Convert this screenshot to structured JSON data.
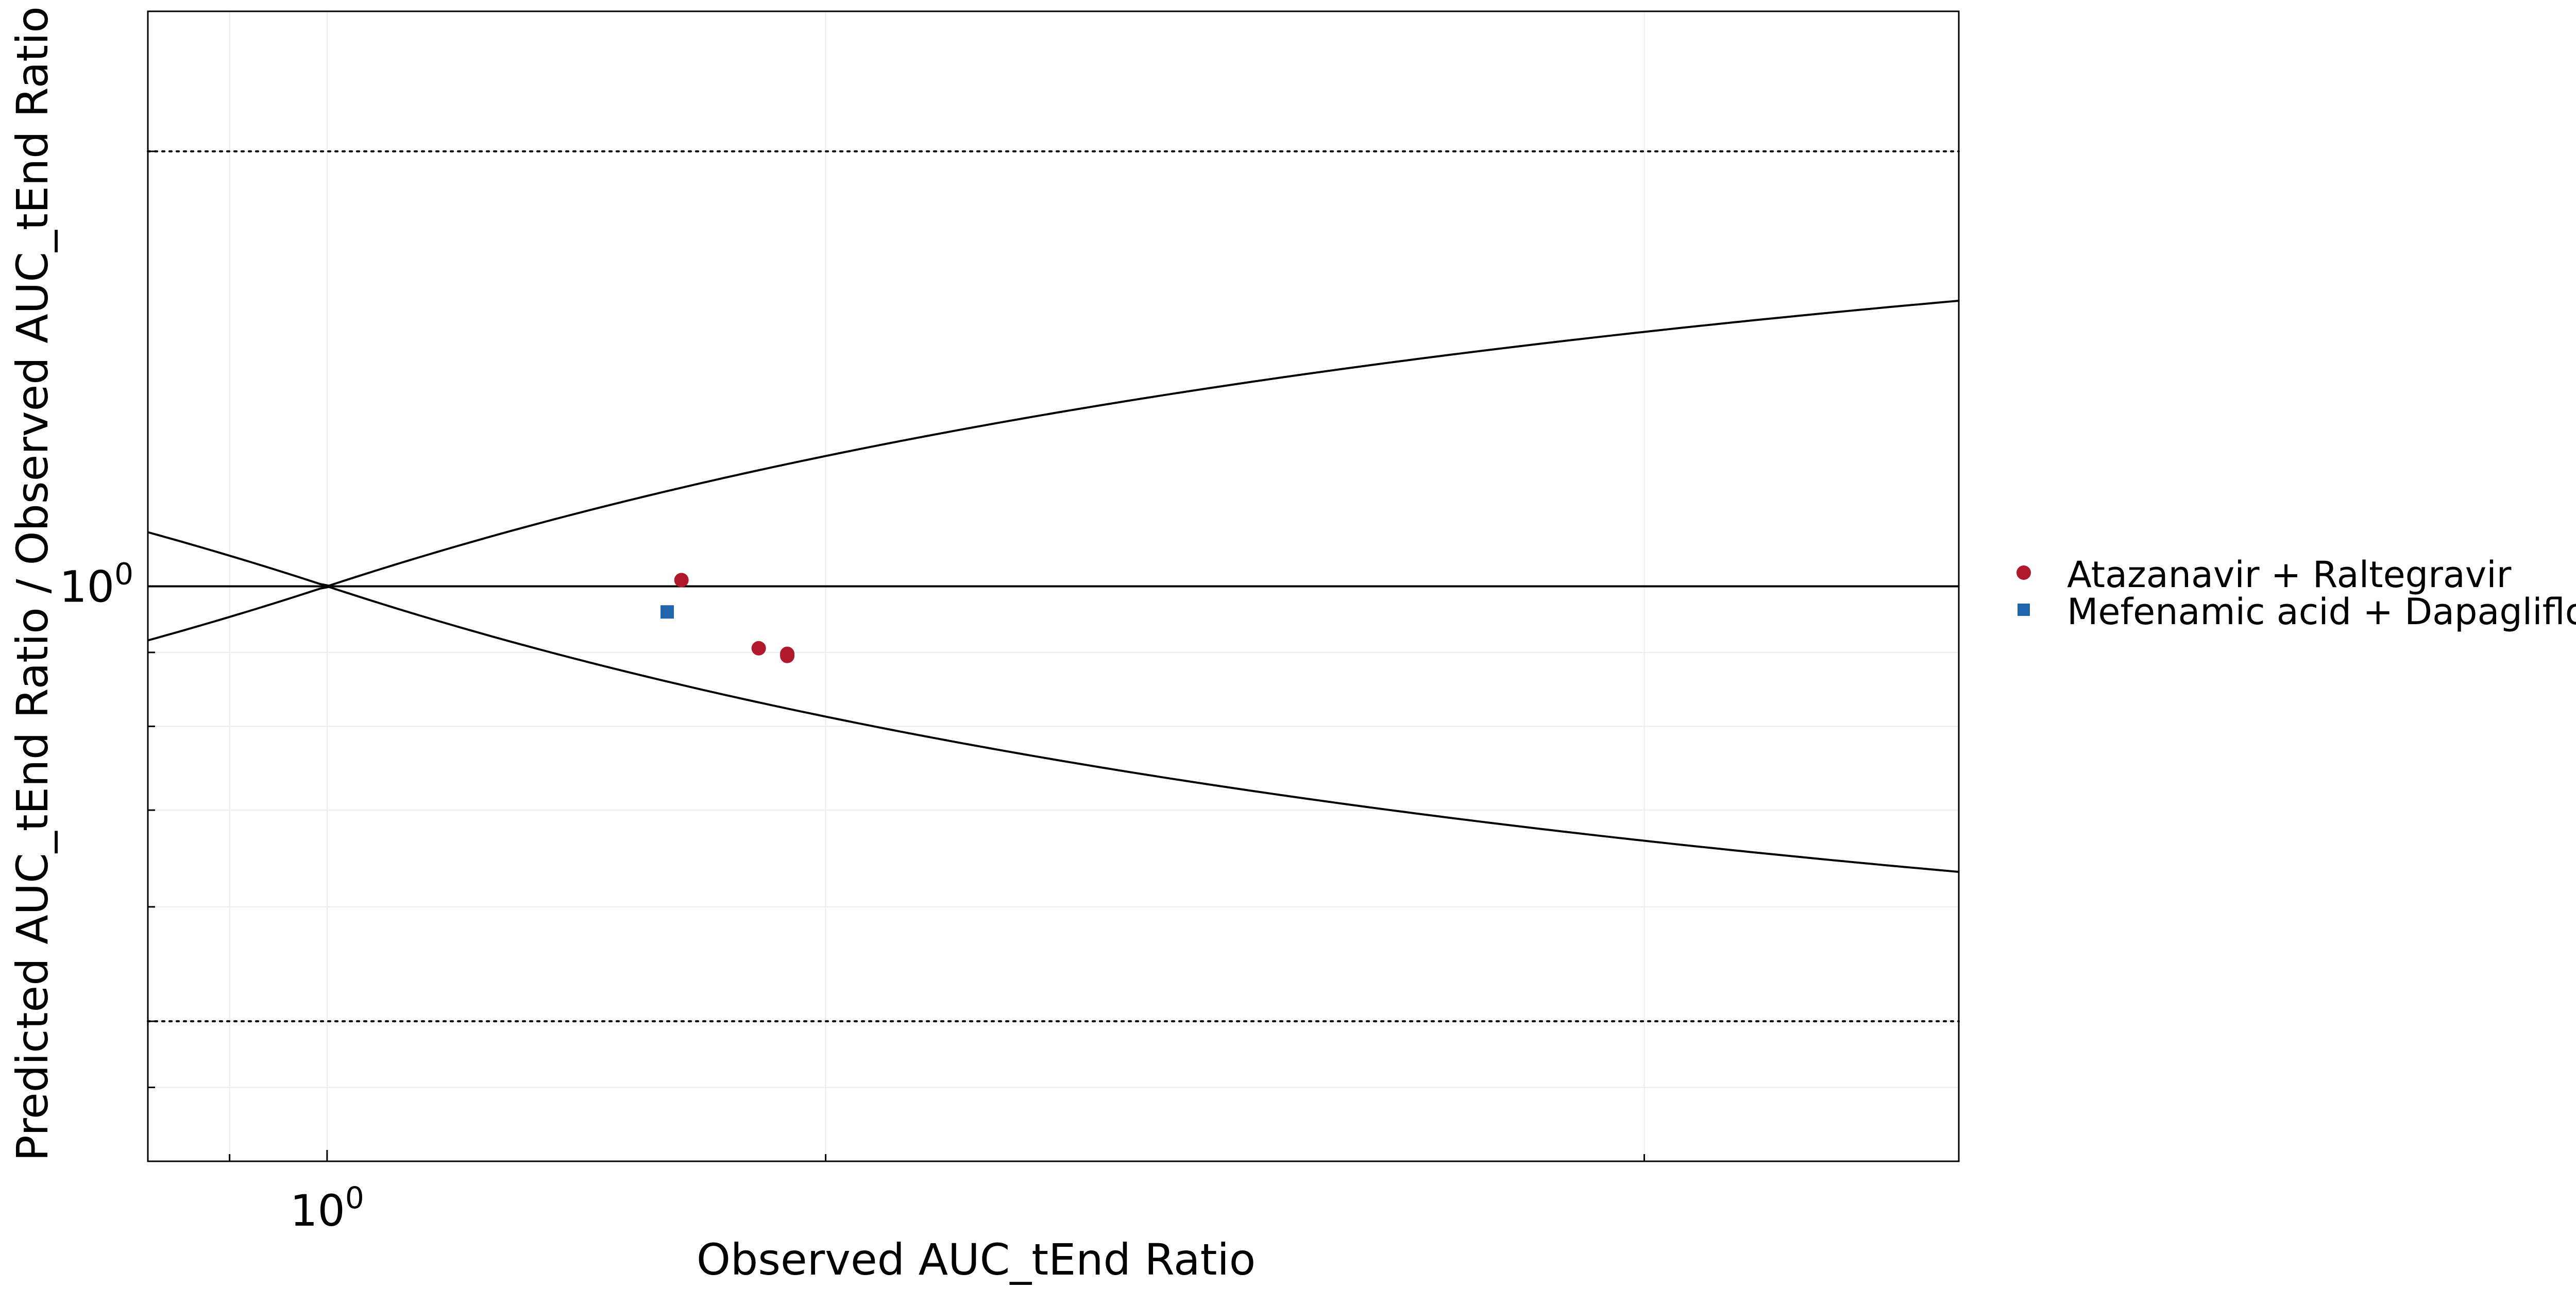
{
  "chart_data": {
    "type": "scatter",
    "title": "",
    "xlabel": "Observed AUC_tEnd Ratio",
    "ylabel": "Predicted AUC_tEnd Ratio / Observed AUC_tEnd Ratio",
    "x_scale": "log",
    "y_scale": "log",
    "xlim": [
      0.91,
      2.36
    ],
    "ylim": [
      0.4,
      2.5
    ],
    "x_ticks": [
      {
        "value": 1,
        "label": "10",
        "exponent": "0"
      }
    ],
    "y_ticks": [
      {
        "value": 1,
        "label": "10",
        "exponent": "0"
      }
    ],
    "x_minor_ticks": [
      0.95,
      1.3,
      2.0
    ],
    "y_minor_ticks": [
      0.45,
      0.5,
      0.6,
      0.7,
      0.8,
      0.9,
      2.0
    ],
    "grid": true,
    "legend_position": "right",
    "reference_lines": [
      {
        "kind": "identity",
        "y": 1,
        "style": "solid"
      },
      {
        "kind": "upper-fold",
        "y": 2,
        "style": "dotted"
      },
      {
        "kind": "lower-fold",
        "y": 0.5,
        "style": "dotted"
      },
      {
        "kind": "guest-upper",
        "style": "solid"
      },
      {
        "kind": "guest-lower",
        "style": "solid"
      }
    ],
    "series": [
      {
        "name": "Atazanavir + Raltegravir",
        "marker": "circle",
        "color": "#B2182B",
        "points": [
          {
            "x": 1.205,
            "y": 1.01
          },
          {
            "x": 1.255,
            "y": 0.906
          },
          {
            "x": 1.274,
            "y": 0.898
          },
          {
            "x": 1.274,
            "y": 0.895
          }
        ]
      },
      {
        "name": "Mefenamic acid + Dapagliflozin",
        "marker": "square",
        "color": "#2166AC",
        "points": [
          {
            "x": 1.196,
            "y": 0.96
          }
        ]
      }
    ]
  }
}
